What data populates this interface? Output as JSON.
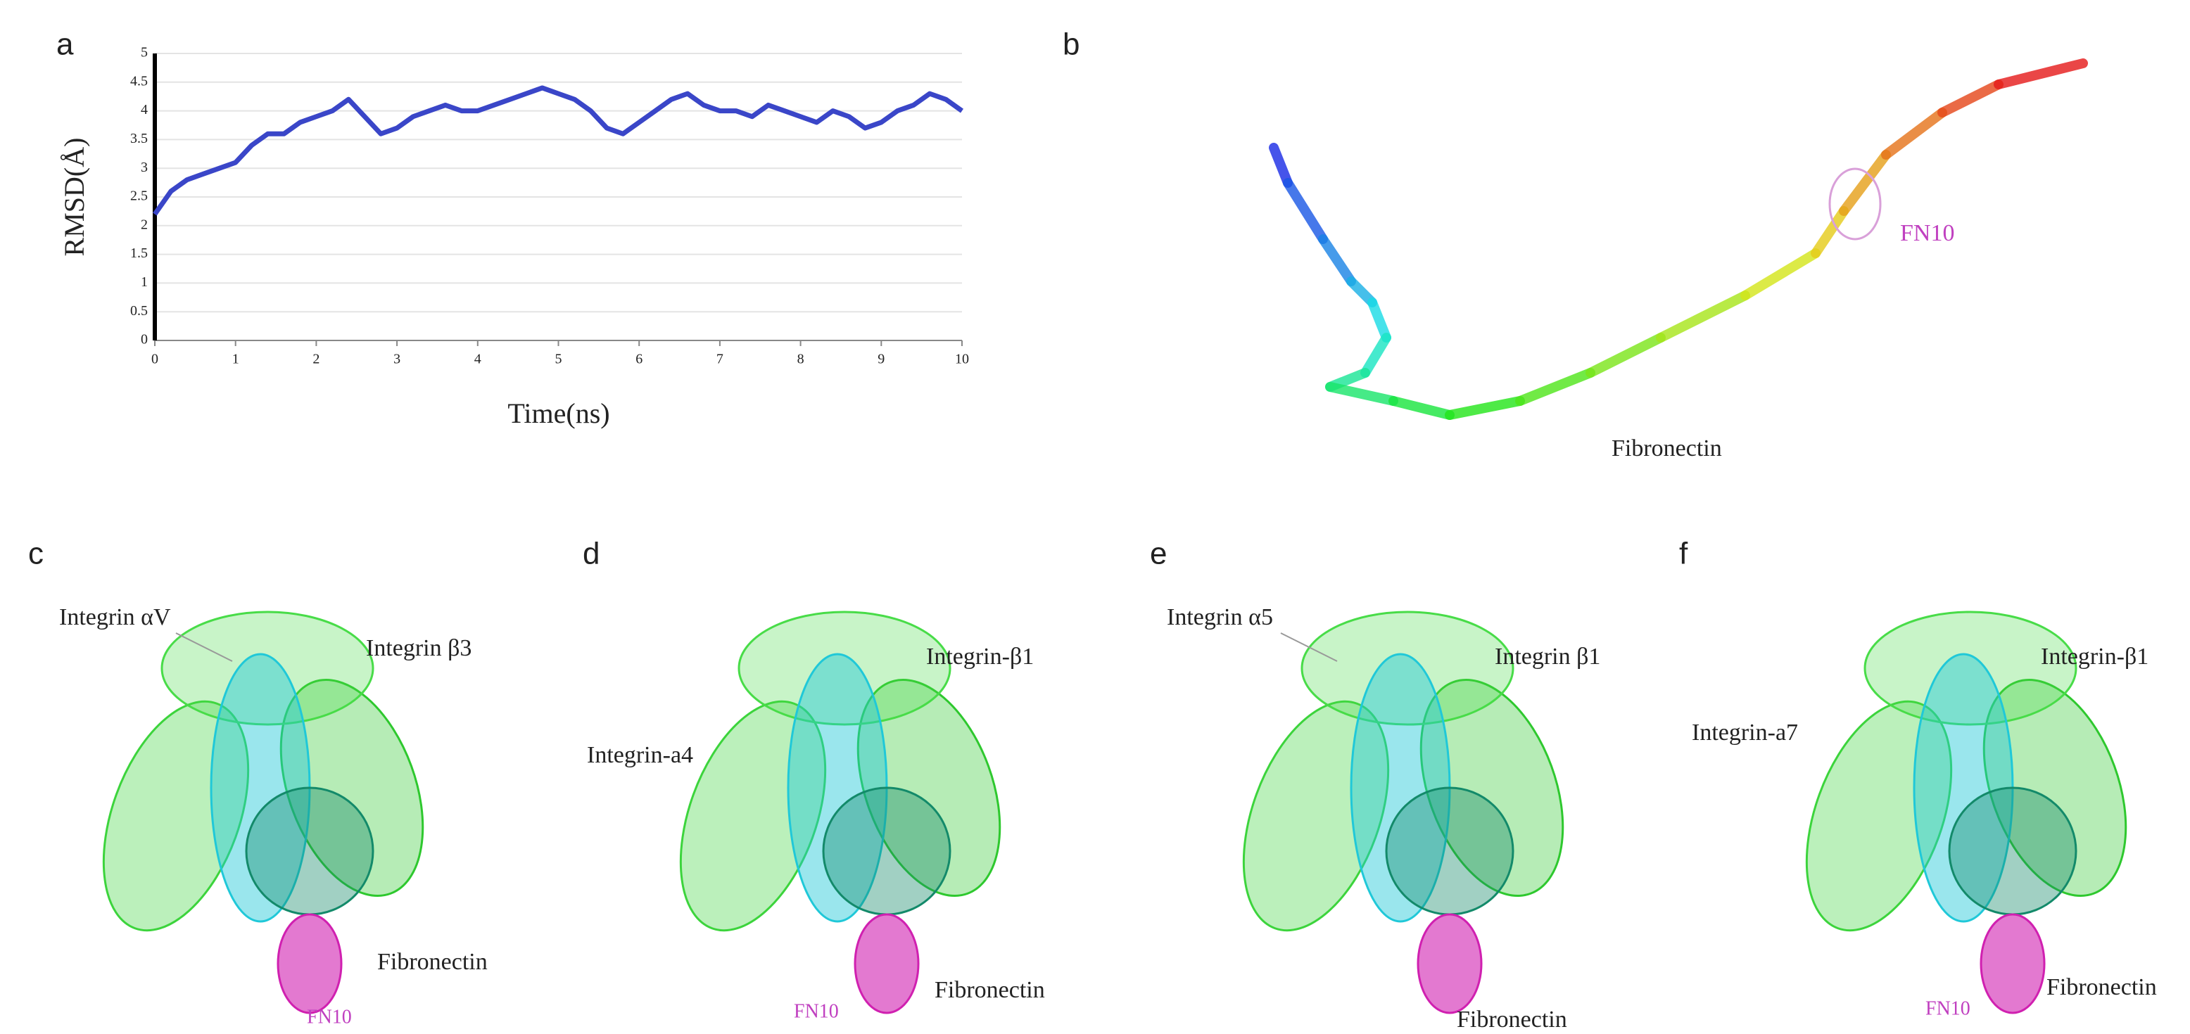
{
  "chart_data": {
    "type": "line",
    "panel_label": "a",
    "xlabel": "Time(ns)",
    "ylabel": "RMSD(Å)",
    "x": [
      0,
      0.2,
      0.4,
      0.6,
      0.8,
      1,
      1.2,
      1.4,
      1.6,
      1.8,
      2,
      2.2,
      2.4,
      2.6,
      2.8,
      3,
      3.2,
      3.4,
      3.6,
      3.8,
      4,
      4.2,
      4.4,
      4.6,
      4.8,
      5,
      5.2,
      5.4,
      5.6,
      5.8,
      6,
      6.2,
      6.4,
      6.6,
      6.8,
      7,
      7.2,
      7.4,
      7.6,
      7.8,
      8,
      8.2,
      8.4,
      8.6,
      8.8,
      9,
      9.2,
      9.4,
      9.6,
      9.8,
      10
    ],
    "values": [
      2.2,
      2.6,
      2.8,
      2.9,
      3.0,
      3.1,
      3.4,
      3.6,
      3.6,
      3.8,
      3.9,
      4.0,
      4.2,
      3.9,
      3.6,
      3.7,
      3.9,
      4.0,
      4.1,
      4.0,
      4.0,
      4.1,
      4.2,
      4.3,
      4.4,
      4.3,
      4.2,
      4.0,
      3.7,
      3.6,
      3.8,
      4.0,
      4.2,
      4.3,
      4.1,
      4.0,
      4.0,
      3.9,
      4.1,
      4.0,
      3.9,
      3.8,
      4.0,
      3.9,
      3.7,
      3.8,
      4.0,
      4.1,
      4.3,
      4.2,
      4.0
    ],
    "color": "#3a46c8",
    "xlim": [
      0,
      10
    ],
    "ylim": [
      0,
      5
    ],
    "xticks": [
      0,
      1,
      2,
      3,
      4,
      5,
      6,
      7,
      8,
      9,
      10
    ],
    "yticks": [
      0,
      0.5,
      1,
      1.5,
      2,
      2.5,
      3,
      3.5,
      4,
      4.5,
      5
    ],
    "grid": true
  },
  "panels": [
    {
      "label": "b",
      "texts": [
        "FN10",
        "Fibronectin"
      ]
    },
    {
      "label": "c",
      "texts": [
        "Integrin αV",
        "Integrin β3",
        "Fibronectin",
        "FN10"
      ]
    },
    {
      "label": "d",
      "texts": [
        "Integrin-β1",
        "Integrin-a4",
        "FN10",
        "Fibronectin"
      ]
    },
    {
      "label": "e",
      "texts": [
        "Integrin α5",
        "Integrin β1",
        "Fibronectin"
      ]
    },
    {
      "label": "f",
      "texts": [
        "Integrin-β1",
        "Integrin-a7",
        "FN10",
        "Fibronectin"
      ]
    }
  ]
}
